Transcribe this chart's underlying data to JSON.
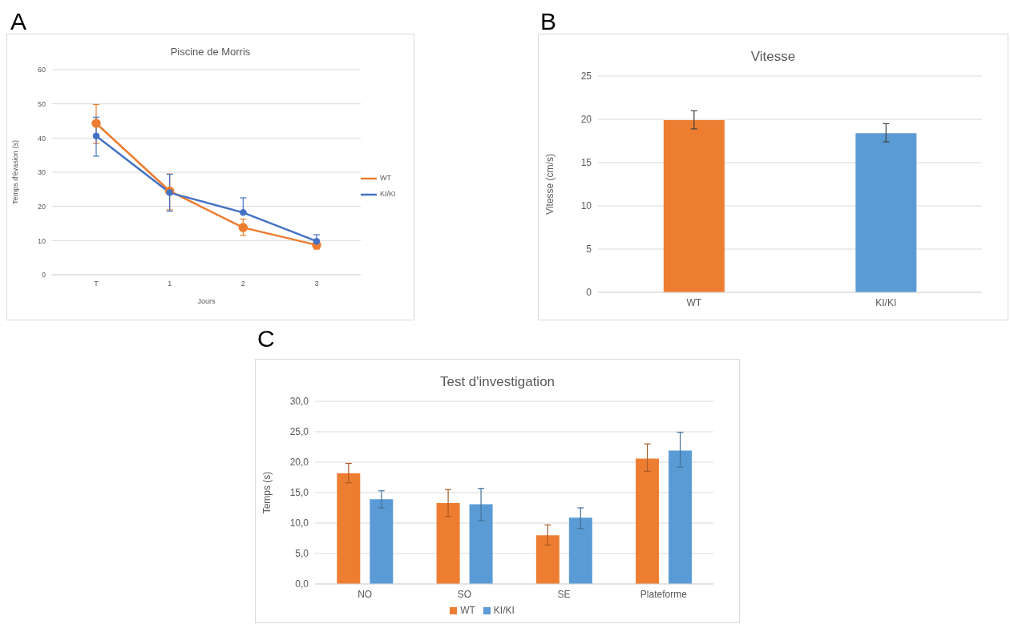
{
  "chart_data": [
    {
      "type": "line",
      "title": "Piscine de Morris",
      "xlabel": "Jours",
      "ylabel": "Temps d'évasion (s)",
      "annotations": [
        "A"
      ],
      "categories": [
        "T",
        "1",
        "2",
        "3"
      ],
      "ylim": [
        0,
        60
      ],
      "yticks": [
        0,
        10,
        20,
        30,
        40,
        50,
        60
      ],
      "grid": "y",
      "legend": "right",
      "marker": "circle",
      "series": [
        {
          "name": "WT",
          "color": "#ed7d31",
          "values": [
            44.3,
            24.5,
            13.8,
            8.7
          ],
          "errors": [
            [
              38.4,
              49.8
            ],
            [
              19.0,
              29.5
            ],
            [
              11.5,
              16.3
            ],
            [
              7.5,
              9.8
            ]
          ]
        },
        {
          "name": "KI/KI",
          "color": "#4472c4",
          "values": [
            40.6,
            24.0,
            18.2,
            9.8
          ],
          "errors": [
            [
              34.7,
              46.1
            ],
            [
              18.6,
              29.4
            ],
            [
              18.2,
              22.5
            ],
            [
              7.8,
              11.7
            ]
          ]
        }
      ]
    },
    {
      "type": "bar",
      "title": "Vitesse",
      "ylabel": "Vitesse (cm/s)",
      "annotations": [
        "B"
      ],
      "categories": [
        "WT",
        "KI/KI"
      ],
      "values": [
        19.9,
        18.4
      ],
      "colors": [
        "#ed7d31",
        "#5b9bd5"
      ],
      "errors": [
        [
          18.9,
          21.0
        ],
        [
          17.4,
          19.5
        ]
      ],
      "ylim": [
        0,
        25
      ],
      "yticks": [
        0,
        5,
        10,
        15,
        20,
        25
      ],
      "grid": "y"
    },
    {
      "type": "bar",
      "title": "Test d'investigation",
      "ylabel": "Temps (s)",
      "annotations": [
        "C"
      ],
      "categories": [
        "NO",
        "SO",
        "SE",
        "Plateforme"
      ],
      "ylim": [
        0,
        30
      ],
      "yticks": [
        {
          "value": 0,
          "label": "0,0"
        },
        {
          "value": 5,
          "label": "5,0"
        },
        {
          "value": 10,
          "label": "10,0"
        },
        {
          "value": 15,
          "label": "15,0"
        },
        {
          "value": 20,
          "label": "20,0"
        },
        {
          "value": 25,
          "label": "25,0"
        },
        {
          "value": 30,
          "label": "30,0"
        }
      ],
      "grid": "y",
      "legend": "bottom",
      "series": [
        {
          "name": "WT",
          "color": "#ed7d31",
          "values": [
            18.2,
            13.3,
            8.0,
            20.6
          ],
          "errors": [
            [
              16.6,
              19.8
            ],
            [
              11.1,
              15.5
            ],
            [
              6.4,
              9.7
            ],
            [
              18.5,
              23.0
            ]
          ]
        },
        {
          "name": "KI/KI",
          "color": "#5b9bd5",
          "values": [
            13.9,
            13.1,
            10.9,
            21.9
          ],
          "errors": [
            [
              12.5,
              15.3
            ],
            [
              10.4,
              15.7
            ],
            [
              9.1,
              12.5
            ],
            [
              19.2,
              24.9
            ]
          ]
        }
      ]
    }
  ]
}
